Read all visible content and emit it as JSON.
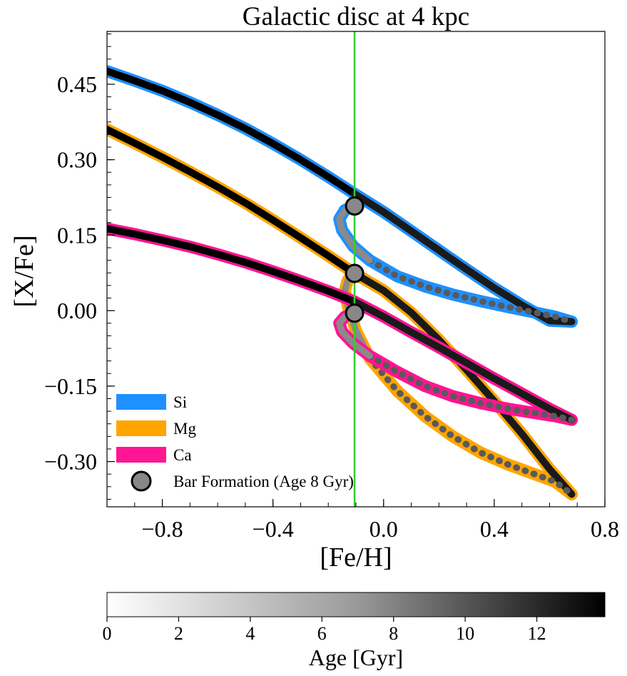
{
  "chart_data": {
    "type": "line",
    "title": "Galactic disc at 4 kpc",
    "xlabel": "[Fe/H]",
    "ylabel": "[X/Fe]",
    "xlim": [
      -1.0,
      0.8
    ],
    "ylim": [
      -0.39,
      0.555
    ],
    "xticks": [
      -0.8,
      -0.4,
      0.0,
      0.4,
      0.8
    ],
    "xtick_labels": [
      "−0.8",
      "−0.4",
      "0.0",
      "0.4",
      "0.8"
    ],
    "yticks": [
      0.45,
      0.3,
      0.15,
      0.0,
      -0.15,
      -0.3
    ],
    "ytick_labels": [
      "0.45",
      "0.30",
      "0.15",
      "0.00",
      "−0.15",
      "−0.30"
    ],
    "reference_line": {
      "feh": -0.105,
      "color": "#33cc33"
    },
    "series": [
      {
        "name": "Si",
        "color": "#1e90ff",
        "track_before_bar": {
          "feh": [
            -1.0,
            -0.9,
            -0.8,
            -0.7,
            -0.6,
            -0.5,
            -0.4,
            -0.3,
            -0.2,
            -0.105
          ],
          "xfe": [
            0.476,
            0.457,
            0.437,
            0.414,
            0.389,
            0.362,
            0.332,
            0.3,
            0.266,
            0.232
          ]
        },
        "track_after_bar": {
          "feh": [
            -0.105,
            0.0,
            0.1,
            0.2,
            0.3,
            0.4,
            0.5,
            0.6,
            0.68
          ],
          "xfe": [
            0.232,
            0.196,
            0.158,
            0.12,
            0.082,
            0.045,
            0.011,
            -0.02,
            -0.022
          ]
        },
        "loop": {
          "feh": [
            -0.105,
            -0.14,
            -0.16,
            -0.15,
            -0.11,
            -0.05,
            0.05,
            0.15,
            0.25,
            0.35,
            0.45,
            0.55,
            0.62,
            0.68
          ],
          "xfe": [
            0.208,
            0.2,
            0.182,
            0.16,
            0.128,
            0.1,
            0.068,
            0.048,
            0.032,
            0.019,
            0.007,
            -0.004,
            -0.012,
            -0.022
          ]
        },
        "bar_formation": {
          "feh": -0.105,
          "xfe": 0.208
        }
      },
      {
        "name": "Mg",
        "color": "#ffa500",
        "track_before_bar": {
          "feh": [
            -1.0,
            -0.9,
            -0.8,
            -0.7,
            -0.6,
            -0.5,
            -0.4,
            -0.3,
            -0.2,
            -0.105
          ],
          "xfe": [
            0.36,
            0.333,
            0.305,
            0.276,
            0.246,
            0.214,
            0.18,
            0.145,
            0.109,
            0.074
          ]
        },
        "track_after_bar": {
          "feh": [
            -0.105,
            0.0,
            0.1,
            0.2,
            0.3,
            0.4,
            0.5,
            0.6,
            0.68
          ],
          "xfe": [
            0.074,
            0.04,
            -0.004,
            -0.058,
            -0.118,
            -0.18,
            -0.245,
            -0.315,
            -0.365
          ]
        },
        "loop": {
          "feh": [
            -0.105,
            -0.13,
            -0.14,
            -0.13,
            -0.1,
            -0.05,
            0.05,
            0.15,
            0.25,
            0.35,
            0.45,
            0.55,
            0.62,
            0.68
          ],
          "xfe": [
            0.074,
            0.06,
            0.04,
            0.01,
            -0.04,
            -0.095,
            -0.16,
            -0.21,
            -0.25,
            -0.282,
            -0.306,
            -0.326,
            -0.34,
            -0.365
          ]
        },
        "bar_formation": {
          "feh": -0.105,
          "xfe": 0.074
        }
      },
      {
        "name": "Ca",
        "color": "#ff1493",
        "track_before_bar": {
          "feh": [
            -1.0,
            -0.9,
            -0.8,
            -0.7,
            -0.6,
            -0.5,
            -0.4,
            -0.3,
            -0.2,
            -0.105
          ],
          "xfe": [
            0.163,
            0.152,
            0.14,
            0.127,
            0.112,
            0.096,
            0.078,
            0.059,
            0.039,
            0.018
          ]
        },
        "track_after_bar": {
          "feh": [
            -0.105,
            0.0,
            0.1,
            0.2,
            0.3,
            0.4,
            0.5,
            0.6,
            0.68
          ],
          "xfe": [
            0.018,
            -0.012,
            -0.043,
            -0.073,
            -0.104,
            -0.135,
            -0.165,
            -0.195,
            -0.217
          ]
        },
        "loop": {
          "feh": [
            -0.105,
            -0.14,
            -0.16,
            -0.15,
            -0.11,
            -0.05,
            0.05,
            0.15,
            0.25,
            0.35,
            0.45,
            0.55,
            0.62,
            0.68
          ],
          "xfe": [
            -0.005,
            -0.012,
            -0.025,
            -0.042,
            -0.065,
            -0.09,
            -0.122,
            -0.15,
            -0.17,
            -0.184,
            -0.195,
            -0.204,
            -0.21,
            -0.217
          ]
        },
        "bar_formation": {
          "feh": -0.105,
          "xfe": -0.005
        }
      }
    ],
    "legend": {
      "placement": "bottom-left",
      "entries": [
        "Si",
        "Mg",
        "Ca",
        "Bar Formation (Age 8 Gyr)"
      ]
    },
    "colorbar": {
      "label": "Age [Gyr]",
      "range": [
        0,
        13.9
      ],
      "ticks": [
        0,
        2,
        4,
        6,
        8,
        10,
        12
      ],
      "tick_labels": [
        "0",
        "2",
        "4",
        "6",
        "8",
        "10",
        "12"
      ],
      "colormap": "Greys"
    }
  }
}
